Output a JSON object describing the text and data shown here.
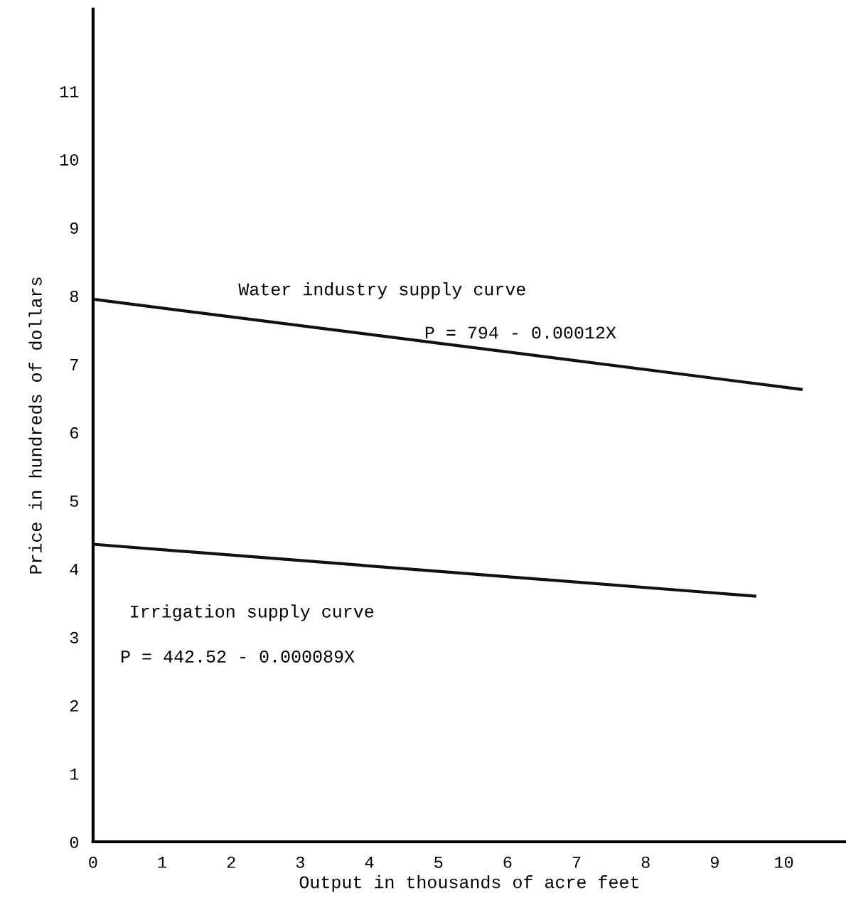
{
  "chart_data": {
    "type": "line",
    "xlabel": "Output in thousands of acre feet",
    "ylabel": "Price in hundreds of dollars",
    "xlim": [
      0,
      10.9
    ],
    "ylim": [
      0,
      12.2
    ],
    "xticks": [
      0,
      1,
      2,
      3,
      4,
      5,
      6,
      7,
      8,
      9,
      10
    ],
    "yticks": [
      0,
      1,
      2,
      3,
      4,
      5,
      6,
      7,
      8,
      9,
      10,
      11
    ],
    "series": [
      {
        "color": "#111111",
        "x": [
          0,
          10.25
        ],
        "values": [
          7.95,
          6.63
        ]
      },
      {
        "color": "#111111",
        "x": [
          0,
          9.58
        ],
        "values": [
          4.36,
          3.6
        ]
      }
    ],
    "annotations": [
      "Water industry supply curve",
      "P = 794 - 0.00012X",
      "Irrigation supply curve",
      "P = 442.52 - 0.000089X"
    ],
    "grid": false,
    "legend": false,
    "marker": "none",
    "line_style": "solid"
  }
}
